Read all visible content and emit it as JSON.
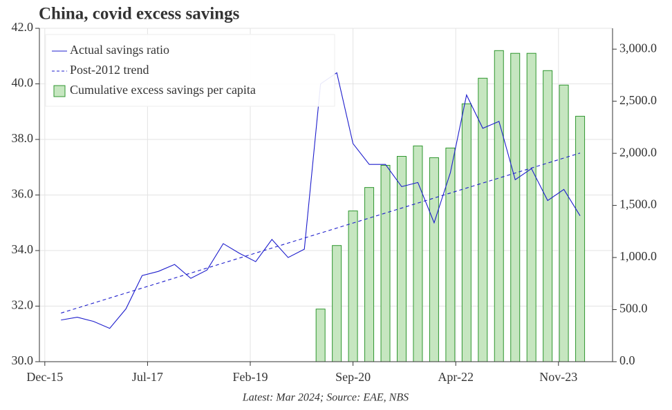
{
  "chart_data": {
    "type": "line",
    "title": "China, covid excess savings",
    "footnote": "Latest: Mar 2024; Source: EAE, NBS",
    "x": [
      "2016-03",
      "2016-06",
      "2016-09",
      "2016-12",
      "2017-03",
      "2017-06",
      "2017-09",
      "2017-12",
      "2018-03",
      "2018-06",
      "2018-09",
      "2018-12",
      "2019-03",
      "2019-06",
      "2019-09",
      "2019-12",
      "2020-03",
      "2020-06",
      "2020-09",
      "2020-12",
      "2021-03",
      "2021-06",
      "2021-09",
      "2021-12",
      "2022-03",
      "2022-06",
      "2022-09",
      "2022-12",
      "2023-03",
      "2023-06",
      "2023-09",
      "2023-12",
      "2024-03"
    ],
    "xlim": [
      "2015-11",
      "2024-09"
    ],
    "xticks": [
      {
        "value": "2015-12",
        "label": "Dec-15"
      },
      {
        "value": "2017-07",
        "label": "Jul-17"
      },
      {
        "value": "2019-02",
        "label": "Feb-19"
      },
      {
        "value": "2020-09",
        "label": "Sep-20"
      },
      {
        "value": "2022-04",
        "label": "Apr-22"
      },
      {
        "value": "2023-11",
        "label": "Nov-23"
      }
    ],
    "ylim": [
      30,
      42
    ],
    "yticks": [
      {
        "value": 30,
        "label": "30.0"
      },
      {
        "value": 32,
        "label": "32.0"
      },
      {
        "value": 34,
        "label": "34.0"
      },
      {
        "value": 36,
        "label": "36.0"
      },
      {
        "value": 38,
        "label": "38.0"
      },
      {
        "value": 40,
        "label": "40.0"
      },
      {
        "value": 42,
        "label": "42.0"
      }
    ],
    "y2lim": [
      0,
      3200
    ],
    "y2ticks": [
      {
        "value": 0,
        "label": "0.0"
      },
      {
        "value": 500,
        "label": "500.0"
      },
      {
        "value": 1000,
        "label": "1,000.0"
      },
      {
        "value": 1500,
        "label": "1,500.0"
      },
      {
        "value": 2000,
        "label": "2,000.0"
      },
      {
        "value": 2500,
        "label": "2,500.0"
      },
      {
        "value": 3000,
        "label": "3,000.0"
      }
    ],
    "grid": true,
    "legend": "upper left",
    "series": [
      {
        "name": "Actual savings ratio",
        "type": "line",
        "style": "solid",
        "color": "#1c1ccc",
        "values": [
          31.5,
          31.6,
          31.45,
          31.2,
          31.9,
          33.1,
          33.25,
          33.5,
          33.0,
          33.3,
          34.25,
          33.9,
          33.6,
          34.4,
          33.75,
          34.05,
          40.0,
          40.4,
          37.85,
          37.1,
          37.1,
          36.3,
          36.45,
          35.0,
          36.8,
          39.6,
          38.4,
          38.65,
          36.55,
          36.95,
          35.8,
          36.2,
          35.25
        ]
      },
      {
        "name": "Post-2012 trend",
        "type": "line",
        "style": "dashed",
        "color": "#1c1ccc",
        "values": [
          31.75,
          31.93,
          32.11,
          32.29,
          32.47,
          32.65,
          32.83,
          33.01,
          33.19,
          33.37,
          33.55,
          33.73,
          33.91,
          34.09,
          34.27,
          34.45,
          34.63,
          34.81,
          34.99,
          35.17,
          35.35,
          35.53,
          35.71,
          35.89,
          36.07,
          36.25,
          36.43,
          36.61,
          36.79,
          36.97,
          37.15,
          37.33,
          37.51
        ]
      },
      {
        "name": "Cumulative excess savings per capita",
        "type": "bar",
        "axis": "y2",
        "color": "#c6e6c0",
        "edgecolor": "#2e962e",
        "values": [
          null,
          null,
          null,
          null,
          null,
          null,
          null,
          null,
          null,
          null,
          null,
          null,
          null,
          null,
          null,
          null,
          505,
          1115,
          1447,
          1672,
          1885,
          1971,
          2071,
          1958,
          2051,
          2475,
          2721,
          2986,
          2960,
          2960,
          2794,
          2655,
          2356
        ]
      }
    ]
  }
}
